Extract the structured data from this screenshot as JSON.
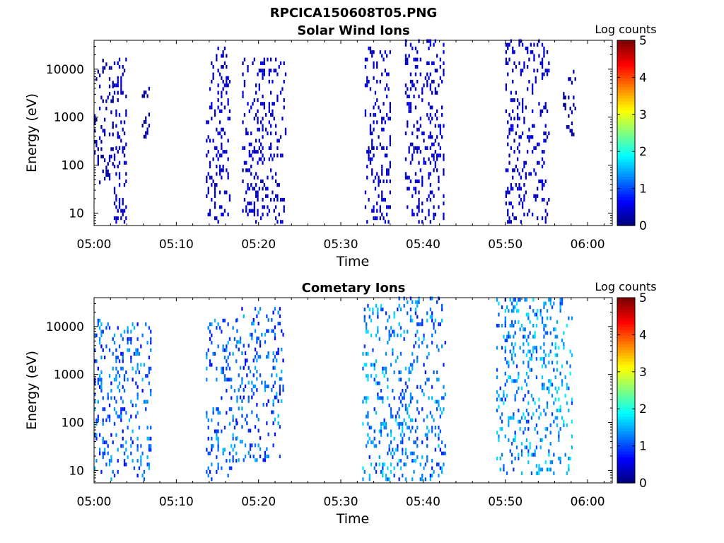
{
  "figure_title": "RPCICA150608T05.PNG",
  "chart_data": [
    {
      "type": "heatmap",
      "title": "Solar Wind Ions",
      "xlabel": "Time",
      "ylabel": "Energy (eV)",
      "yscale": "log",
      "ylim": [
        5.5,
        40000
      ],
      "xlim": [
        "05:00",
        "06:03"
      ],
      "x_ticks": [
        "05:00",
        "05:10",
        "05:20",
        "05:30",
        "05:40",
        "05:50",
        "06:00"
      ],
      "y_ticks": [
        "10",
        "100",
        "1000",
        "10000"
      ],
      "colorbar": {
        "label": "Log counts",
        "min": 0,
        "max": 5,
        "ticks": [
          "0",
          "1",
          "2",
          "3",
          "4",
          "5"
        ],
        "colormap": "jet"
      },
      "bursts": [
        {
          "t_start_min": 0.0,
          "t_end_min": 2.4,
          "e_min_eV": 40,
          "e_max_eV": 15000,
          "log_count_typical": 0.1
        },
        {
          "t_start_min": 2.4,
          "t_end_min": 3.9,
          "e_min_eV": 6,
          "e_max_eV": 15000,
          "log_count_typical": 0.3
        },
        {
          "t_start_min": 5.8,
          "t_end_min": 6.8,
          "e_min_eV": 300,
          "e_max_eV": 7000,
          "log_count_typical": 0.1
        },
        {
          "t_start_min": 13.6,
          "t_end_min": 16.4,
          "e_min_eV": 6,
          "e_max_eV": 28000,
          "log_count_typical": 0.3
        },
        {
          "t_start_min": 18.0,
          "t_end_min": 23.3,
          "e_min_eV": 6,
          "e_max_eV": 15000,
          "log_count_typical": 0.3
        },
        {
          "t_start_min": 32.9,
          "t_end_min": 36.0,
          "e_min_eV": 6,
          "e_max_eV": 26000,
          "log_count_typical": 0.3
        },
        {
          "t_start_min": 37.8,
          "t_end_min": 42.5,
          "e_min_eV": 6,
          "e_max_eV": 38000,
          "log_count_typical": 0.3
        },
        {
          "t_start_min": 50.0,
          "t_end_min": 55.4,
          "e_min_eV": 6,
          "e_max_eV": 38000,
          "log_count_typical": 0.3
        },
        {
          "t_start_min": 57.0,
          "t_end_min": 58.5,
          "e_min_eV": 400,
          "e_max_eV": 9000,
          "log_count_typical": 0.1
        }
      ]
    },
    {
      "type": "heatmap",
      "title": "Cometary Ions",
      "xlabel": "Time",
      "ylabel": "Energy (eV)",
      "yscale": "log",
      "ylim": [
        5.5,
        40000
      ],
      "xlim": [
        "05:00",
        "06:03"
      ],
      "x_ticks": [
        "05:00",
        "05:10",
        "05:20",
        "05:30",
        "05:40",
        "05:50",
        "06:00"
      ],
      "y_ticks": [
        "10",
        "100",
        "1000",
        "10000"
      ],
      "colorbar": {
        "label": "Log counts",
        "min": 0,
        "max": 5,
        "ticks": [
          "0",
          "1",
          "2",
          "3",
          "4",
          "5"
        ],
        "colormap": "jet"
      },
      "bursts": [
        {
          "t_start_min": 0.0,
          "t_end_min": 3.0,
          "e_min_eV": 6,
          "e_max_eV": 13000,
          "log_count_typical": 0.9
        },
        {
          "t_start_min": 3.0,
          "t_end_min": 6.9,
          "e_min_eV": 6,
          "e_max_eV": 12000,
          "log_count_typical": 0.9
        },
        {
          "t_start_min": 13.6,
          "t_end_min": 17.3,
          "e_min_eV": 6,
          "e_max_eV": 13000,
          "log_count_typical": 0.9
        },
        {
          "t_start_min": 17.3,
          "t_end_min": 23.0,
          "e_min_eV": 15,
          "e_max_eV": 22000,
          "log_count_typical": 0.9
        },
        {
          "t_start_min": 32.6,
          "t_end_min": 36.8,
          "e_min_eV": 6,
          "e_max_eV": 26000,
          "log_count_typical": 1.1
        },
        {
          "t_start_min": 36.8,
          "t_end_min": 42.8,
          "e_min_eV": 6,
          "e_max_eV": 38000,
          "log_count_typical": 1.0
        },
        {
          "t_start_min": 48.9,
          "t_end_min": 53.8,
          "e_min_eV": 8,
          "e_max_eV": 38000,
          "log_count_typical": 1.1
        },
        {
          "t_start_min": 53.8,
          "t_end_min": 58.2,
          "e_min_eV": 8,
          "e_max_eV": 38000,
          "log_count_typical": 1.2
        }
      ]
    }
  ]
}
